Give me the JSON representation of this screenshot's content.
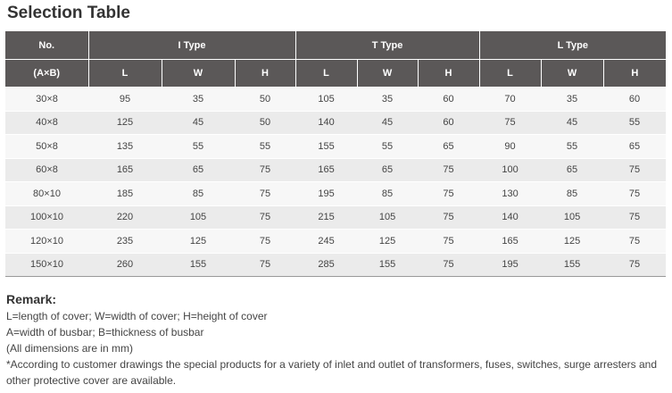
{
  "title": "Selection Table",
  "header": {
    "no": "No.",
    "ab": "(A×B)",
    "groups": [
      "I Type",
      "T Type",
      "L Type"
    ],
    "sub": [
      "L",
      "W",
      "H"
    ]
  },
  "rows": [
    [
      "30×8",
      "95",
      "35",
      "50",
      "105",
      "35",
      "60",
      "70",
      "35",
      "60"
    ],
    [
      "40×8",
      "125",
      "45",
      "50",
      "140",
      "45",
      "60",
      "75",
      "45",
      "55"
    ],
    [
      "50×8",
      "135",
      "55",
      "55",
      "155",
      "55",
      "65",
      "90",
      "55",
      "65"
    ],
    [
      "60×8",
      "165",
      "65",
      "75",
      "165",
      "65",
      "75",
      "100",
      "65",
      "75"
    ],
    [
      "80×10",
      "185",
      "85",
      "75",
      "195",
      "85",
      "75",
      "130",
      "85",
      "75"
    ],
    [
      "100×10",
      "220",
      "105",
      "75",
      "215",
      "105",
      "75",
      "140",
      "105",
      "75"
    ],
    [
      "120×10",
      "235",
      "125",
      "75",
      "245",
      "125",
      "75",
      "165",
      "125",
      "75"
    ],
    [
      "150×10",
      "260",
      "155",
      "75",
      "285",
      "155",
      "75",
      "195",
      "155",
      "75"
    ]
  ],
  "remark": {
    "title": "Remark:",
    "lines": [
      "L=length of cover; W=width of cover; H=height of cover",
      "A=width of busbar; B=thickness of busbar",
      "(All dimensions are in mm)",
      "*According to customer drawings the special products for a variety of inlet and outlet of transformers, fuses, switches, surge arresters and other protective cover  are available."
    ]
  }
}
